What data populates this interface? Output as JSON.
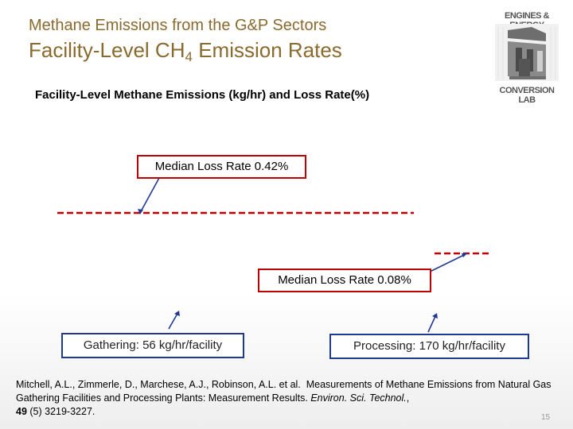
{
  "header": {
    "supertitle": "Methane Emissions from the G&P Sectors",
    "title_main": "Facility-Level CH",
    "title_sub": "4",
    "title_rest": " Emission Rates"
  },
  "logo": {
    "line1": "ENGINES & ENERGY",
    "line2": "CONVERSION LAB"
  },
  "subtitle": "Facility-Level Methane Emissions (kg/hr) and Loss Rate(%)",
  "callouts": {
    "gathering_median": "Median Loss Rate 0.42%",
    "processing_median": "Median Loss Rate 0.08%"
  },
  "categories": {
    "gathering": "Gathering: 56 kg/hr/facility",
    "processing": "Processing: 170 kg/hr/facility"
  },
  "citation": {
    "authors": "Mitchell, A.L., Zimmerle, D., Marchese, A.J., Robinson, A.L. et al.",
    "title": "Measurements of Methane Emissions from Natural Gas Gathering Facilities and Processing Plants: Measurement Results.",
    "journal": "Environ. Sci. Technol.",
    "volume": "49",
    "issue_pages": " (5) 3219-3227."
  },
  "page_number": "15",
  "colors": {
    "title": "#8a6a2e",
    "callout_border": "#c00000",
    "category_border": "#1f3a93",
    "dash_line": "#c00000"
  }
}
